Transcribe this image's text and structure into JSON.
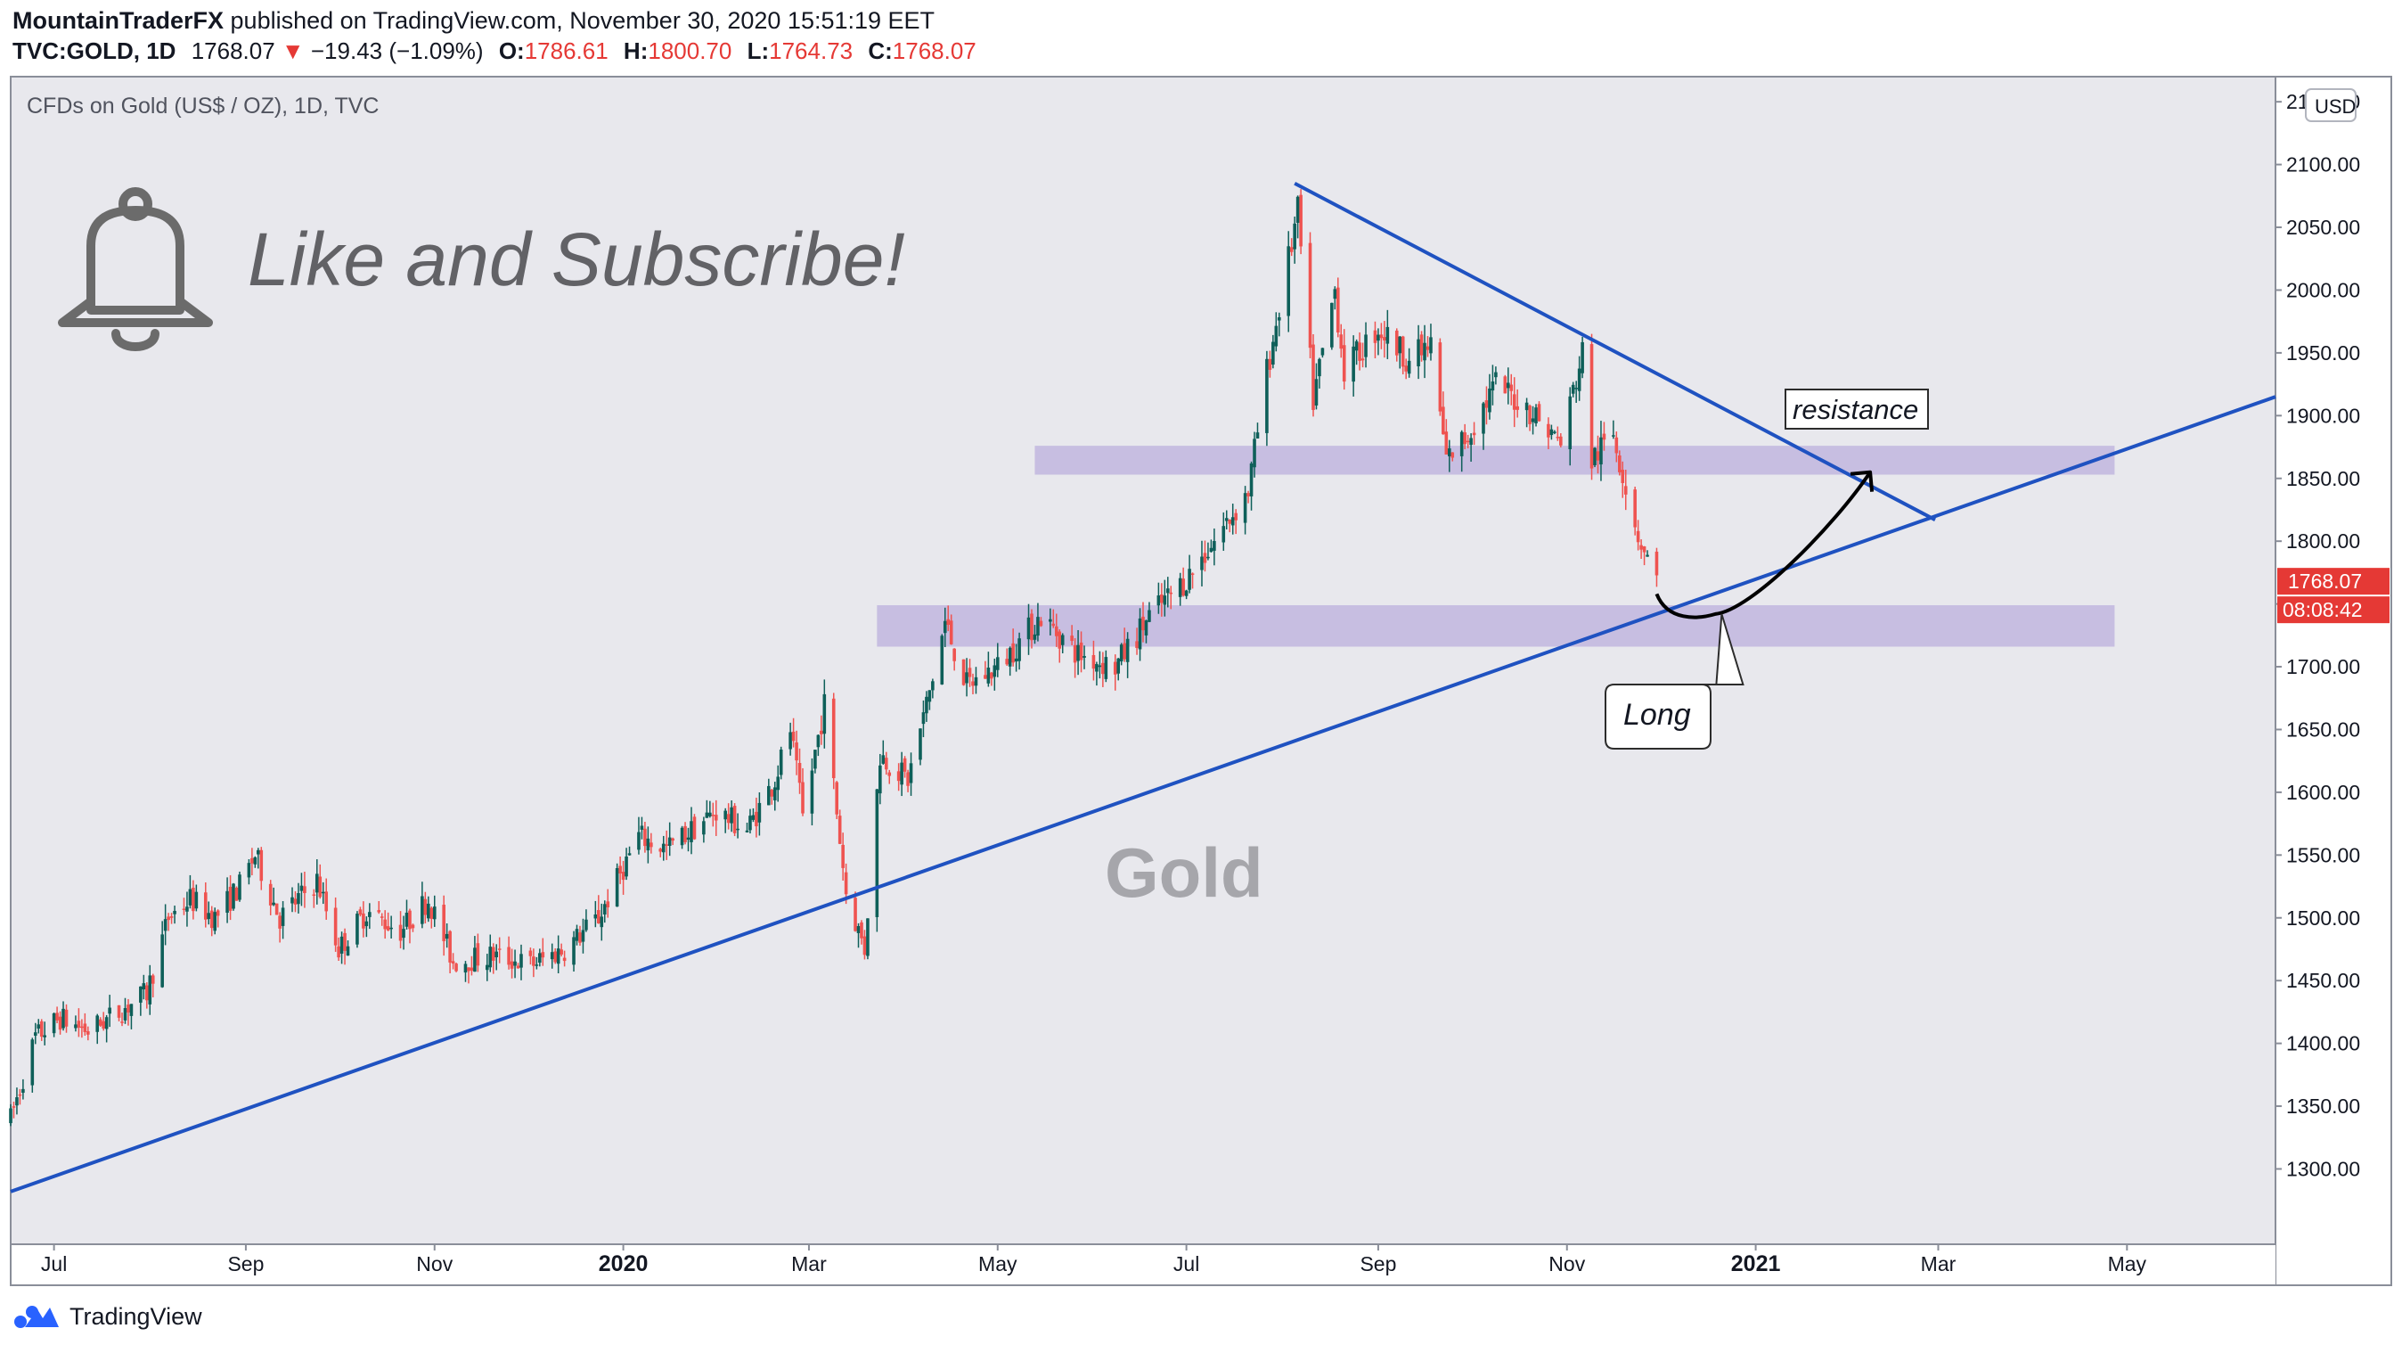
{
  "header": {
    "author": "MountainTraderFX",
    "published_text": "published on TradingView.com, November 30, 2020 15:51:19 EET",
    "symbol": "TVC:GOLD, 1D",
    "last": "1768.07",
    "change_arrow": "▼",
    "change": "−19.43 (−1.09%)",
    "open_label": "O:",
    "open": "1786.61",
    "high_label": "H:",
    "high": "1800.70",
    "low_label": "L:",
    "low": "1764.73",
    "close_label": "C:",
    "close": "1768.07"
  },
  "chart_title": "CFDs on Gold (US$ / OZ), 1D, TVC",
  "currency_badge": "USD",
  "price_tag": "1768.07",
  "countdown_tag": "08:08:42",
  "annotations": {
    "banner": "Like and Subscribe!",
    "watermark": "Gold",
    "resistance": "resistance",
    "long": "Long"
  },
  "footer": {
    "brand": "TradingView"
  },
  "colors": {
    "up": "#26a69a",
    "upDark": "#0e5f59",
    "down": "#ef5350",
    "line": "#1f52c1",
    "zone": "rgba(160,140,210,0.45)",
    "tag": "#e53935"
  },
  "chart_data": {
    "type": "candlestick",
    "title": "CFDs on Gold (US$ / OZ), 1D, TVC",
    "y_ticks": [
      1300,
      1350,
      1400,
      1450,
      1500,
      1550,
      1600,
      1650,
      1700,
      1750,
      1800,
      1850,
      1900,
      1950,
      2000,
      2050,
      2100,
      2150
    ],
    "y_tick_labels": [
      "1300.00",
      "1350.00",
      "1400.00",
      "1450.00",
      "1500.00",
      "1550.00",
      "1600.00",
      "1650.00",
      "1700.00",
      "1750.00",
      "1800.00",
      "1850.00",
      "1900.00",
      "1950.00",
      "2000.00",
      "2050.00",
      "2100.00",
      "2150.00"
    ],
    "ylim": [
      1240,
      2170
    ],
    "x_ticks": [
      {
        "date": "2019-07-01",
        "label": "Jul"
      },
      {
        "date": "2019-09-01",
        "label": "Sep"
      },
      {
        "date": "2019-11-01",
        "label": "Nov"
      },
      {
        "date": "2020-01-01",
        "label": "2020"
      },
      {
        "date": "2020-03-01",
        "label": "Mar"
      },
      {
        "date": "2020-05-01",
        "label": "May"
      },
      {
        "date": "2020-07-01",
        "label": "Jul"
      },
      {
        "date": "2020-09-01",
        "label": "Sep"
      },
      {
        "date": "2020-11-01",
        "label": "Nov"
      },
      {
        "date": "2021-01-01",
        "label": "2021"
      },
      {
        "date": "2021-03-01",
        "label": "Mar"
      },
      {
        "date": "2021-05-01",
        "label": "May"
      }
    ],
    "xlim": [
      "2019-06-17",
      "2021-06-18"
    ],
    "price_path": [
      [
        "2019-06-17",
        1340
      ],
      [
        "2019-06-25",
        1405
      ],
      [
        "2019-07-03",
        1420
      ],
      [
        "2019-07-12",
        1410
      ],
      [
        "2019-07-22",
        1425
      ],
      [
        "2019-07-31",
        1440
      ],
      [
        "2019-08-07",
        1500
      ],
      [
        "2019-08-14",
        1515
      ],
      [
        "2019-08-22",
        1500
      ],
      [
        "2019-08-30",
        1525
      ],
      [
        "2019-09-04",
        1550
      ],
      [
        "2019-09-12",
        1500
      ],
      [
        "2019-09-24",
        1530
      ],
      [
        "2019-10-01",
        1475
      ],
      [
        "2019-10-10",
        1505
      ],
      [
        "2019-10-21",
        1490
      ],
      [
        "2019-10-30",
        1515
      ],
      [
        "2019-11-07",
        1465
      ],
      [
        "2019-11-20",
        1470
      ],
      [
        "2019-12-02",
        1463
      ],
      [
        "2019-12-13",
        1475
      ],
      [
        "2019-12-24",
        1500
      ],
      [
        "2020-01-06",
        1565
      ],
      [
        "2020-01-15",
        1555
      ],
      [
        "2020-01-31",
        1585
      ],
      [
        "2020-02-10",
        1570
      ],
      [
        "2020-02-19",
        1610
      ],
      [
        "2020-02-24",
        1650
      ],
      [
        "2020-02-28",
        1580
      ],
      [
        "2020-03-06",
        1670
      ],
      [
        "2020-03-13",
        1520
      ],
      [
        "2020-03-19",
        1475
      ],
      [
        "2020-03-24",
        1630
      ],
      [
        "2020-04-02",
        1610
      ],
      [
        "2020-04-09",
        1680
      ],
      [
        "2020-04-14",
        1735
      ],
      [
        "2020-04-21",
        1685
      ],
      [
        "2020-05-01",
        1700
      ],
      [
        "2020-05-15",
        1740
      ],
      [
        "2020-05-27",
        1710
      ],
      [
        "2020-06-08",
        1700
      ],
      [
        "2020-06-19",
        1740
      ],
      [
        "2020-07-01",
        1770
      ],
      [
        "2020-07-10",
        1800
      ],
      [
        "2020-07-21",
        1840
      ],
      [
        "2020-07-27",
        1935
      ],
      [
        "2020-08-06",
        2062
      ],
      [
        "2020-08-11",
        1912
      ],
      [
        "2020-08-18",
        2000
      ],
      [
        "2020-08-21",
        1935
      ],
      [
        "2020-09-01",
        1970
      ],
      [
        "2020-09-11",
        1945
      ],
      [
        "2020-09-18",
        1955
      ],
      [
        "2020-09-23",
        1865
      ],
      [
        "2020-09-30",
        1885
      ],
      [
        "2020-10-09",
        1925
      ],
      [
        "2020-10-20",
        1905
      ],
      [
        "2020-10-30",
        1878
      ],
      [
        "2020-11-06",
        1950
      ],
      [
        "2020-11-09",
        1865
      ],
      [
        "2020-11-16",
        1885
      ],
      [
        "2020-11-24",
        1805
      ],
      [
        "2020-11-30",
        1768
      ]
    ],
    "support_line": {
      "points": [
        [
          "2019-06-17",
          1282
        ],
        [
          "2021-06-18",
          1915
        ]
      ]
    },
    "resistance_line": {
      "points": [
        [
          "2020-08-05",
          2085
        ],
        [
          "2021-02-28",
          1817
        ]
      ]
    },
    "zones": [
      {
        "from": "2020-05-13",
        "to": "2021-04-27",
        "low": 1853,
        "high": 1876
      },
      {
        "from": "2020-03-23",
        "to": "2021-04-27",
        "low": 1716,
        "high": 1749
      }
    ],
    "projection_curve": {
      "points": [
        [
          "2020-11-30",
          1758
        ],
        [
          "2020-12-19",
          1742
        ],
        [
          "2021-02-07",
          1855
        ]
      ]
    },
    "callouts": [
      {
        "text": "resistance",
        "anchor": [
          "2021-01-25",
          1900
        ]
      },
      {
        "text": "Long",
        "anchor": [
          "2020-12-21",
          1742
        ]
      }
    ],
    "last_price": 1768.07
  }
}
